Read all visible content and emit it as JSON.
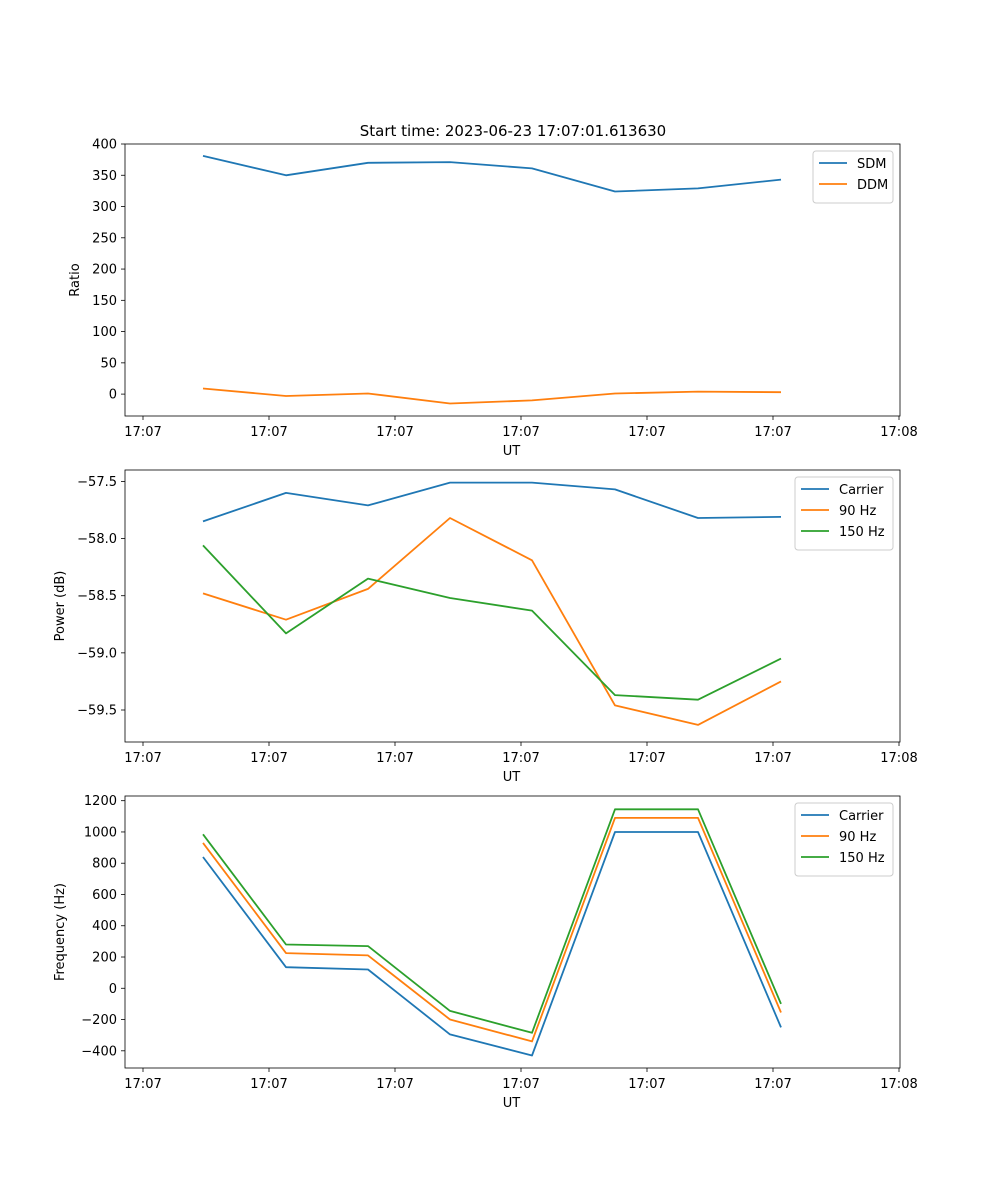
{
  "figure": {
    "title": "Start time: 2023-06-23 17:07:01.613630"
  },
  "chart_data": [
    {
      "type": "line",
      "title": "Start time: 2023-06-23 17:07:01.613630",
      "xlabel": "UT",
      "ylabel": "Ratio",
      "xtick_labels": [
        "17:07",
        "17:07",
        "17:07",
        "17:07",
        "17:07",
        "17:07",
        "17:08"
      ],
      "yticks": [
        0,
        50,
        100,
        150,
        200,
        250,
        300,
        350,
        400
      ],
      "ylim": [
        -35,
        400
      ],
      "legend": "top-right",
      "series": [
        {
          "name": "SDM",
          "color": "#1f77b4",
          "values": [
            381,
            350,
            370,
            371,
            361,
            324,
            329,
            343
          ]
        },
        {
          "name": "DDM",
          "color": "#ff7f0e",
          "values": [
            9,
            -3,
            1,
            -15,
            -10,
            1,
            4,
            3
          ]
        }
      ]
    },
    {
      "type": "line",
      "xlabel": "UT",
      "ylabel": "Power (dB)",
      "xtick_labels": [
        "17:07",
        "17:07",
        "17:07",
        "17:07",
        "17:07",
        "17:07",
        "17:08"
      ],
      "yticks": [
        -59.5,
        -59.0,
        -58.5,
        -58.0,
        -57.5
      ],
      "ytick_labels": [
        "−59.5",
        "−59.0",
        "−58.5",
        "−58.0",
        "−57.5"
      ],
      "ylim": [
        -59.78,
        -57.4
      ],
      "legend": "top-right",
      "series": [
        {
          "name": "Carrier",
          "color": "#1f77b4",
          "values": [
            -57.85,
            -57.6,
            -57.71,
            -57.51,
            -57.51,
            -57.57,
            -57.82,
            -57.81
          ]
        },
        {
          "name": "90 Hz",
          "color": "#ff7f0e",
          "values": [
            -58.48,
            -58.71,
            -58.44,
            -57.82,
            -58.19,
            -59.46,
            -59.63,
            -59.25
          ]
        },
        {
          "name": "150 Hz",
          "color": "#2ca02c",
          "values": [
            -58.06,
            -58.83,
            -58.35,
            -58.52,
            -58.63,
            -59.37,
            -59.41,
            -59.05
          ]
        }
      ]
    },
    {
      "type": "line",
      "xlabel": "UT",
      "ylabel": "Frequency (Hz)",
      "xtick_labels": [
        "17:07",
        "17:07",
        "17:07",
        "17:07",
        "17:07",
        "17:07",
        "17:08"
      ],
      "yticks": [
        -400,
        -200,
        0,
        200,
        400,
        600,
        800,
        1000,
        1200
      ],
      "ytick_labels": [
        "−400",
        "−200",
        "0",
        "200",
        "400",
        "600",
        "800",
        "1000",
        "1200"
      ],
      "ylim": [
        -510,
        1230
      ],
      "legend": "top-right",
      "series": [
        {
          "name": "Carrier",
          "color": "#1f77b4",
          "values": [
            840,
            135,
            120,
            -295,
            -430,
            1000,
            1000,
            -250
          ]
        },
        {
          "name": "90 Hz",
          "color": "#ff7f0e",
          "values": [
            930,
            225,
            210,
            -200,
            -340,
            1090,
            1090,
            -155
          ]
        },
        {
          "name": "150 Hz",
          "color": "#2ca02c",
          "values": [
            985,
            280,
            270,
            -145,
            -285,
            1145,
            1145,
            -100
          ]
        }
      ]
    }
  ]
}
